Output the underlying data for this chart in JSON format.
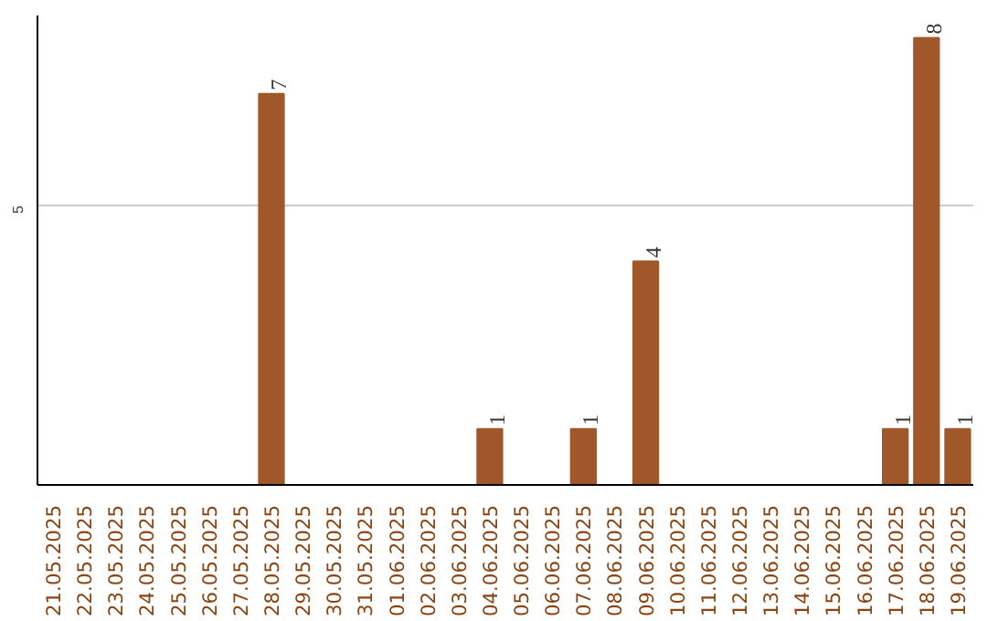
{
  "chart_data": {
    "type": "bar",
    "categories": [
      "21.05.2025",
      "22.05.2025",
      "23.05.2025",
      "24.05.2025",
      "25.05.2025",
      "26.05.2025",
      "27.05.2025",
      "28.05.2025",
      "29.05.2025",
      "30.05.2025",
      "31.05.2025",
      "01.06.2025",
      "02.06.2025",
      "03.06.2025",
      "04.06.2025",
      "05.06.2025",
      "06.06.2025",
      "07.06.2025",
      "08.06.2025",
      "09.06.2025",
      "10.06.2025",
      "11.06.2025",
      "12.06.2025",
      "13.06.2025",
      "14.06.2025",
      "15.06.2025",
      "16.06.2025",
      "17.06.2025",
      "18.06.2025",
      "19.06.2025"
    ],
    "values": [
      0,
      0,
      0,
      0,
      0,
      0,
      0,
      7,
      0,
      0,
      0,
      0,
      0,
      0,
      1,
      0,
      0,
      1,
      0,
      4,
      0,
      0,
      0,
      0,
      0,
      0,
      0,
      1,
      8,
      1
    ],
    "value_labels": [
      null,
      null,
      null,
      null,
      null,
      null,
      null,
      "7",
      null,
      null,
      null,
      null,
      null,
      null,
      "1",
      null,
      null,
      "1",
      null,
      "4",
      null,
      null,
      null,
      null,
      null,
      null,
      null,
      "1",
      "8",
      "1"
    ],
    "color": "#a0582a",
    "ylim": [
      0,
      8.4
    ],
    "yticks": [
      5
    ],
    "grid": "y"
  }
}
